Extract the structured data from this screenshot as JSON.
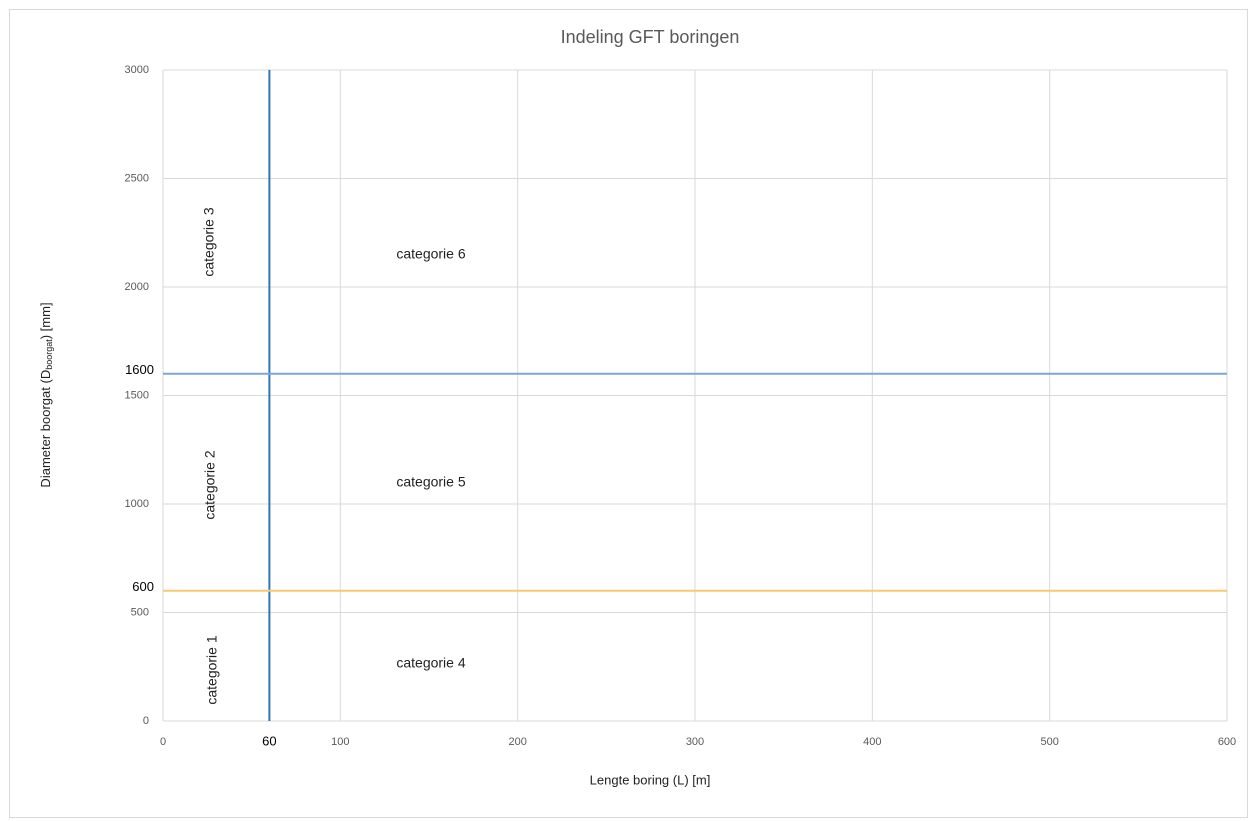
{
  "chart_data": {
    "type": "reference",
    "title": "Indeling GFT boringen",
    "xlabel": "Lengte boring (L) [m]",
    "ylabel_parts": [
      "Diameter boorgat  (D",
      "boorgat",
      ") [mm]"
    ],
    "xlim": [
      0,
      600
    ],
    "ylim": [
      0,
      3000
    ],
    "xticks": [
      0,
      100,
      200,
      300,
      400,
      500,
      600
    ],
    "yticks": [
      0,
      500,
      1000,
      1500,
      2000,
      2500,
      3000
    ],
    "grid": true,
    "reference_lines": [
      {
        "axis": "x",
        "value": 60,
        "color": "#2e75b6"
      },
      {
        "axis": "y",
        "value": 1600,
        "color": "#7ba7d7"
      },
      {
        "axis": "y",
        "value": 600,
        "color": "#f9c872"
      }
    ],
    "annotations": [
      "categorie 1",
      "categorie 2",
      "categorie 3",
      "categorie 4",
      "categorie 5",
      "categorie 6"
    ]
  }
}
